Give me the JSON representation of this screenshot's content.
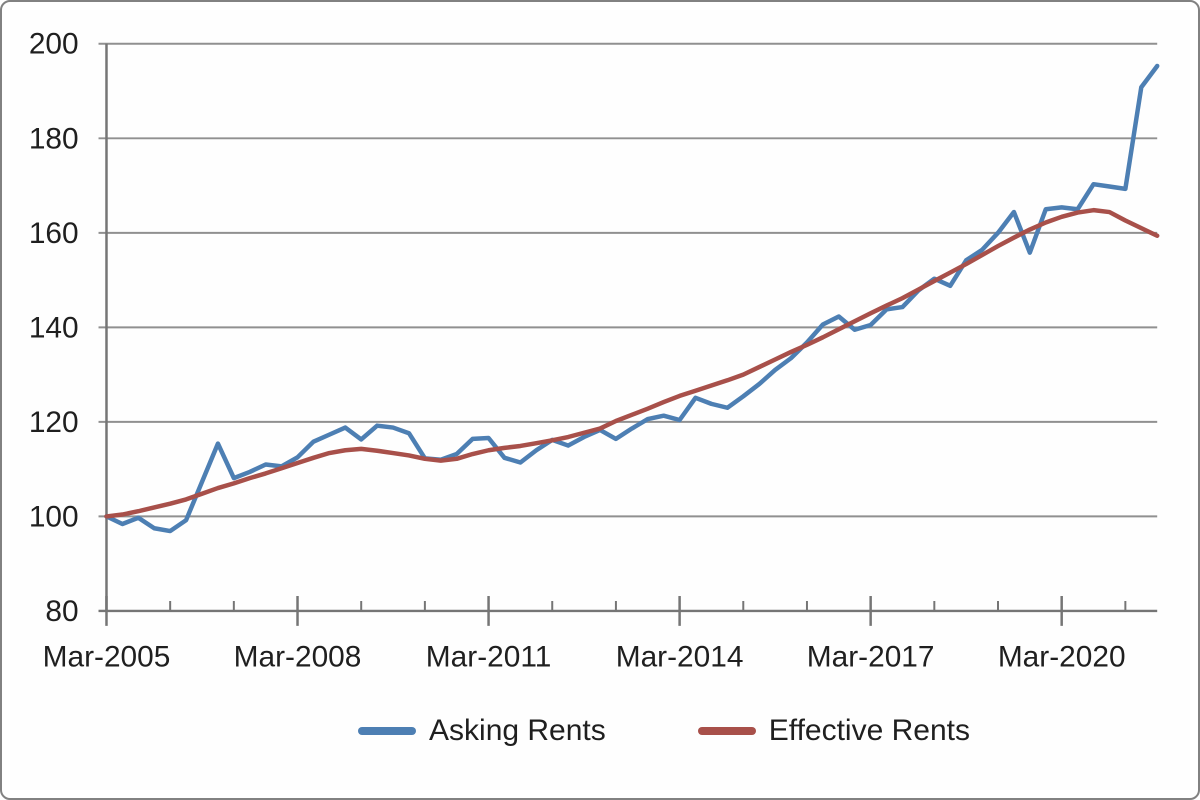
{
  "window": {
    "background": "#fefefe",
    "frame_border_color": "#818181"
  },
  "colors": {
    "asking_rents_line": "#4d7fb3",
    "effective_rents_line": "#a8504a",
    "gridline": "#909090",
    "axis_line": "#757575",
    "tick_label_text": "#1f1f1f"
  },
  "chart_data": {
    "type": "line",
    "title": "",
    "xlabel": "",
    "ylabel": "",
    "frequency": "quarterly",
    "x_start": "Mar-2005",
    "x_end": "Sep-2021",
    "x_tick_labels": [
      "Mar-2005",
      "Mar-2008",
      "Mar-2011",
      "Mar-2014",
      "Mar-2017",
      "Mar-2020"
    ],
    "x_label_every_n_points": 12,
    "x_minor_tick_every_n_points": 4,
    "ylim": [
      80,
      200
    ],
    "yticks": [
      80,
      100,
      120,
      140,
      160,
      180,
      200
    ],
    "grid": "horizontal",
    "legend_position": "bottom",
    "series": [
      {
        "name": "Asking Rents",
        "color": "#4d7fb3",
        "values": [
          100.0,
          98.4,
          99.7,
          97.5,
          96.9,
          99.2,
          107.3,
          115.4,
          108.1,
          109.4,
          111.0,
          110.6,
          112.5,
          115.8,
          117.3,
          118.8,
          116.3,
          119.2,
          118.8,
          117.6,
          112.3,
          112.0,
          113.2,
          116.4,
          116.6,
          112.4,
          111.4,
          114.0,
          116.2,
          115.0,
          116.8,
          118.3,
          116.4,
          118.6,
          120.6,
          121.3,
          120.4,
          125.1,
          123.8,
          123.0,
          125.4,
          128.0,
          131.0,
          133.5,
          136.8,
          140.6,
          142.3,
          139.5,
          140.5,
          143.8,
          144.3,
          147.8,
          150.3,
          148.8,
          154.2,
          156.4,
          160.0,
          164.4,
          155.8,
          165.0,
          165.4,
          165.0,
          170.3,
          169.8,
          169.3,
          190.8,
          195.3
        ]
      },
      {
        "name": "Effective Rents",
        "color": "#a8504a",
        "values": [
          100.0,
          100.4,
          101.1,
          101.9,
          102.7,
          103.6,
          104.8,
          106.0,
          107.0,
          108.1,
          109.1,
          110.2,
          111.3,
          112.4,
          113.4,
          114.0,
          114.3,
          113.9,
          113.4,
          112.9,
          112.2,
          111.8,
          112.2,
          113.2,
          114.0,
          114.5,
          114.9,
          115.5,
          116.1,
          116.8,
          117.7,
          118.6,
          120.2,
          121.5,
          122.8,
          124.2,
          125.5,
          126.6,
          127.7,
          128.8,
          130.0,
          131.6,
          133.2,
          134.8,
          136.3,
          137.9,
          139.6,
          141.3,
          143.0,
          144.6,
          146.2,
          148.0,
          149.8,
          151.6,
          153.4,
          155.3,
          157.2,
          159.0,
          160.7,
          162.2,
          163.4,
          164.3,
          164.8,
          164.4,
          162.6,
          161.0,
          159.4
        ]
      }
    ]
  }
}
